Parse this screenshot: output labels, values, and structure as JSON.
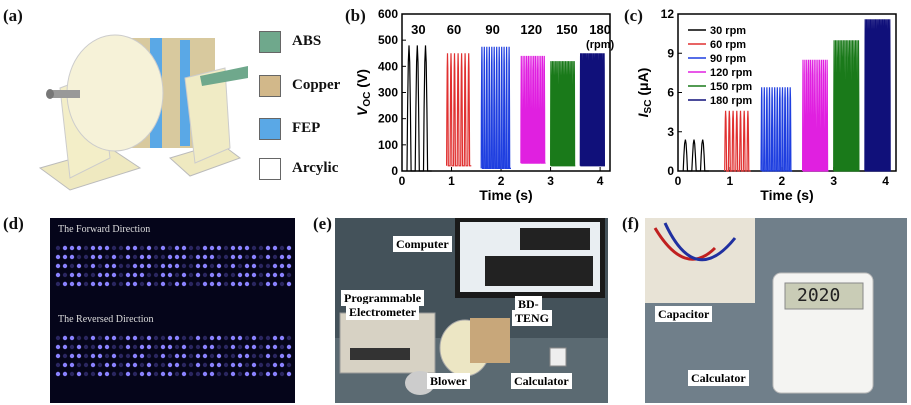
{
  "labels": {
    "a": "(a)",
    "b": "(b)",
    "c": "(c)",
    "d": "(d)",
    "e": "(e)",
    "f": "(f)"
  },
  "legend_a": [
    {
      "label": "ABS",
      "color": "#6fa88c"
    },
    {
      "label": "Copper",
      "color": "#d2b88a"
    },
    {
      "label": "FEP",
      "color": "#5aa8e6"
    },
    {
      "label": "Arcylic",
      "color": "#ffffff"
    }
  ],
  "chart_b": {
    "type": "line",
    "ylabel_main": "V",
    "ylabel_sub": "OC",
    "ylabel_unit": " (V)",
    "xlabel": "Time (s)",
    "xlim": [
      0,
      4.2
    ],
    "ylim": [
      0,
      600
    ],
    "xticks": [
      0,
      1,
      2,
      3,
      4
    ],
    "yticks": [
      0,
      100,
      200,
      300,
      400,
      500,
      600
    ],
    "annotations": [
      "30",
      "60",
      "90",
      "120",
      "150",
      "180",
      "(rpm)"
    ],
    "series": [
      {
        "name": "30",
        "color": "#000000",
        "t_start": 0.1,
        "t_end": 0.6,
        "min": 0,
        "max": 480,
        "cycles": 3
      },
      {
        "name": "60",
        "color": "#e03030",
        "t_start": 0.9,
        "t_end": 1.4,
        "min": 20,
        "max": 450,
        "cycles": 7
      },
      {
        "name": "90",
        "color": "#1f3fe0",
        "t_start": 1.6,
        "t_end": 2.2,
        "min": 10,
        "max": 475,
        "cycles": 12
      },
      {
        "name": "120",
        "color": "#e020e0",
        "t_start": 2.4,
        "t_end": 2.9,
        "min": 30,
        "max": 440,
        "cycles": 14
      },
      {
        "name": "150",
        "color": "#1a7a1a",
        "t_start": 3.0,
        "t_end": 3.5,
        "min": 20,
        "max": 420,
        "cycles": 17
      },
      {
        "name": "180",
        "color": "#10107a",
        "t_start": 3.6,
        "t_end": 4.1,
        "min": 20,
        "max": 450,
        "cycles": 20
      }
    ]
  },
  "chart_c": {
    "type": "line",
    "ylabel_main": "I",
    "ylabel_sub": "SC",
    "ylabel_unit": " (μA)",
    "xlabel": "Time (s)",
    "xlim": [
      0,
      4.2
    ],
    "ylim": [
      0,
      12
    ],
    "xticks": [
      0,
      1,
      2,
      3,
      4
    ],
    "yticks": [
      0,
      3,
      6,
      9,
      12
    ],
    "legend": [
      "30 rpm",
      "60 rpm",
      "90 rpm",
      "120 rpm",
      "150 rpm",
      "180 rpm"
    ],
    "series": [
      {
        "name": "30 rpm",
        "color": "#000000",
        "t_start": 0.1,
        "t_end": 0.6,
        "min": 0,
        "max": 2.4,
        "cycles": 3
      },
      {
        "name": "60 rpm",
        "color": "#e03030",
        "t_start": 0.9,
        "t_end": 1.4,
        "min": 0,
        "max": 4.6,
        "cycles": 7
      },
      {
        "name": "90 rpm",
        "color": "#1f3fe0",
        "t_start": 1.6,
        "t_end": 2.2,
        "min": 0,
        "max": 6.4,
        "cycles": 12
      },
      {
        "name": "120 rpm",
        "color": "#e020e0",
        "t_start": 2.4,
        "t_end": 2.9,
        "min": 0,
        "max": 8.5,
        "cycles": 14
      },
      {
        "name": "150 rpm",
        "color": "#1a7a1a",
        "t_start": 3.0,
        "t_end": 3.5,
        "min": 0,
        "max": 10.0,
        "cycles": 17
      },
      {
        "name": "180 rpm",
        "color": "#10107a",
        "t_start": 3.6,
        "t_end": 4.1,
        "min": 0,
        "max": 11.6,
        "cycles": 20
      }
    ]
  },
  "panel_d": {
    "forward": "The Forward Direction",
    "reversed": "The Reversed Direction"
  },
  "panel_e": {
    "computer": "Computer",
    "electrometer_1": "Programmable",
    "electrometer_2": "Electrometer",
    "teng_1": "BD-",
    "teng_2": "TENG",
    "blower": "Blower",
    "calculator": "Calculator"
  },
  "panel_f": {
    "capacitor": "Capacitor",
    "calculator": "Calculator",
    "display": "2020"
  }
}
